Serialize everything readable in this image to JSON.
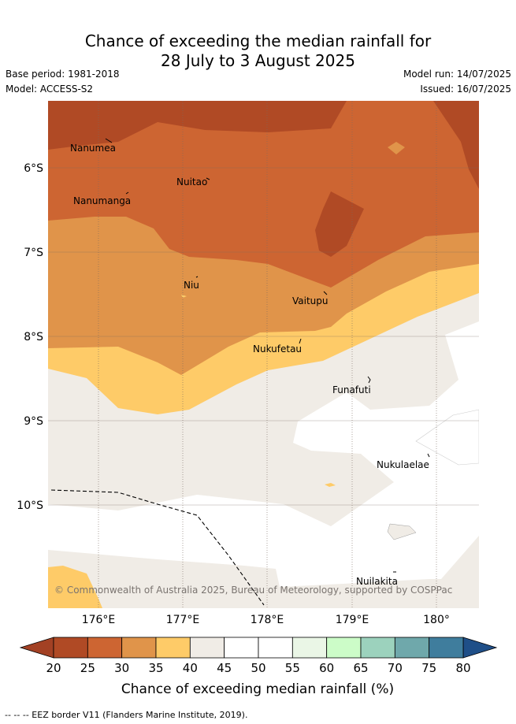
{
  "title": {
    "line1": "Chance of exceeding the median rainfall for",
    "line2": "28 July to 3 August 2025"
  },
  "meta": {
    "base_period": "Base period: 1981-2018",
    "model": "Model: ACCESS-S2",
    "model_run": "Model run: 14/07/2025",
    "issued": "Issued: 16/07/2025"
  },
  "map": {
    "latitude_labels": [
      "6°S",
      "7°S",
      "8°S",
      "9°S",
      "10°S"
    ],
    "longitude_labels": [
      "176°E",
      "177°E",
      "178°E",
      "179°E",
      "180°"
    ],
    "islands": [
      {
        "name": "Nanumea"
      },
      {
        "name": "Nuitao"
      },
      {
        "name": "Nanumanga"
      },
      {
        "name": "Niu"
      },
      {
        "name": "Vaitupu"
      },
      {
        "name": "Nukufetau"
      },
      {
        "name": "Funafuti"
      },
      {
        "name": "Nukulaelae"
      },
      {
        "name": "Nuilakita"
      }
    ],
    "copyright": "© Commonwealth of Australia 2025, Bureau of Meteorology, supported by COSPPac"
  },
  "colorbar": {
    "ticks": [
      "20",
      "25",
      "30",
      "35",
      "40",
      "45",
      "50",
      "55",
      "60",
      "65",
      "70",
      "75",
      "80"
    ],
    "colors": [
      "#b04a25",
      "#cd6532",
      "#e0944a",
      "#fecb68",
      "#f0ece6",
      "#ffffff",
      "#ffffff",
      "#eaf6e6",
      "#ccfcc8",
      "#9cd2bd",
      "#6fa8ab",
      "#3f7d9d"
    ],
    "under_color": "#a34124",
    "over_color": "#1f4f88",
    "label": "Chance of exceeding median rainfall (%)"
  },
  "legend_note": "-- -- -- EEZ border V11 (Flanders Marine Institute, 2019)."
}
